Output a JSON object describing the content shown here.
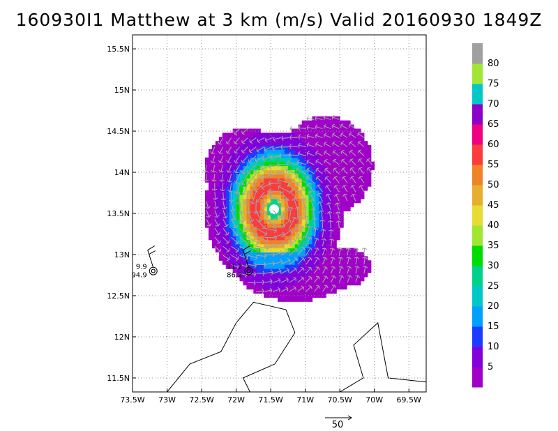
{
  "title": "160930I1 Matthew at 3 km (m/s) Valid 20160930 1849Z",
  "chart_data": {
    "type": "heatmap",
    "title": "160930I1 Matthew at 3 km (m/s) Valid 20160930 1849Z",
    "xlim": [
      -73.5,
      -69.25
    ],
    "ylim": [
      11.33,
      15.67
    ],
    "x_tick_labels": [
      "73.5W",
      "73W",
      "72.5W",
      "72W",
      "71.5W",
      "71W",
      "70.5W",
      "70W",
      "69.5W"
    ],
    "x_tick_values": [
      -73.5,
      -73,
      -72.5,
      -72,
      -71.5,
      -71,
      -70.5,
      -70,
      -69.5
    ],
    "y_tick_labels": [
      "11.5N",
      "12N",
      "12.5N",
      "13N",
      "13.5N",
      "14N",
      "14.5N",
      "15N",
      "15.5N"
    ],
    "y_tick_values": [
      11.5,
      12,
      12.5,
      13,
      13.5,
      14,
      14.5,
      15,
      15.5
    ],
    "grid": true,
    "colorbar": {
      "labels": [
        "5",
        "10",
        "15",
        "20",
        "25",
        "30",
        "35",
        "40",
        "45",
        "50",
        "55",
        "60",
        "65",
        "70",
        "75",
        "80"
      ],
      "colors": [
        "#a000c8",
        "#8200dc",
        "#1e3cff",
        "#00a0ff",
        "#00c8c8",
        "#00d28c",
        "#00dc00",
        "#a0e632",
        "#e6dc32",
        "#e6af2d",
        "#f08228",
        "#fa3c3c",
        "#f00082",
        "#8c00c8",
        "#00c8c8",
        "#a0e632",
        "#a0a0a0"
      ]
    },
    "vector_reference": {
      "label": "50"
    },
    "observations": [
      {
        "lon": -73.2,
        "lat": 12.8,
        "wind_label": "9.9",
        "pressure_label": "94.9"
      },
      {
        "lon": -71.82,
        "lat": 12.8,
        "wind_label": "11.2",
        "pressure_label": "86.2"
      }
    ],
    "center": {
      "lon": -71.45,
      "lat": 13.55
    }
  }
}
